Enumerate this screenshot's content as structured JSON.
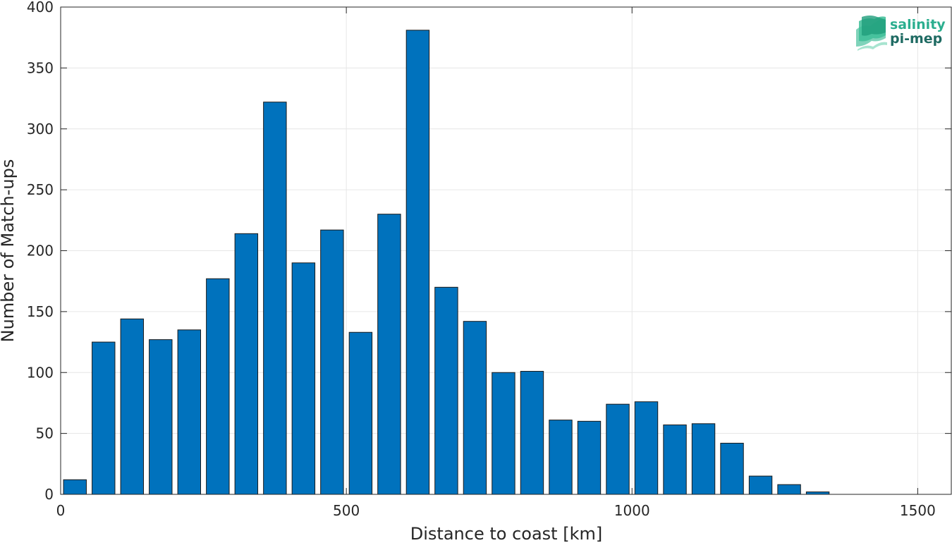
{
  "chart_data": {
    "type": "bar",
    "xlabel": "Distance to coast [km]",
    "ylabel": "Number of Match-ups",
    "xlim": [
      0,
      1560
    ],
    "ylim": [
      0,
      400
    ],
    "x_ticks": [
      0,
      500,
      1000,
      1500
    ],
    "y_ticks": [
      0,
      50,
      100,
      150,
      200,
      250,
      300,
      350,
      400
    ],
    "grid": true,
    "bar_width": 40,
    "bar_color": "#0072BD",
    "x": [
      25,
      75,
      125,
      175,
      225,
      275,
      325,
      375,
      425,
      475,
      525,
      575,
      625,
      675,
      725,
      775,
      825,
      875,
      925,
      975,
      1025,
      1075,
      1125,
      1175,
      1225,
      1275,
      1325,
      1375,
      1425,
      1475,
      1525
    ],
    "values": [
      12,
      125,
      144,
      127,
      135,
      177,
      214,
      322,
      190,
      217,
      133,
      230,
      381,
      170,
      142,
      100,
      101,
      61,
      60,
      74,
      76,
      57,
      58,
      42,
      15,
      8,
      2,
      0,
      0,
      0,
      0
    ]
  },
  "logo": {
    "line1": "salinity",
    "line2": "pi-mep",
    "color1": "#2BAE8F",
    "color2": "#1F6B63"
  }
}
